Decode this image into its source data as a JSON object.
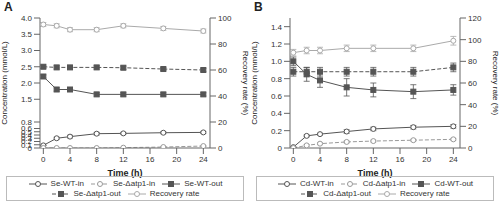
{
  "chart_data": [
    {
      "type": "line",
      "title": "A",
      "xlabel": "Time (h)",
      "ylabel": "Concentration (mmol/L)",
      "y2label": "Recovery rate (%)",
      "x": [
        0,
        2,
        4,
        8,
        12,
        18,
        24
      ],
      "xlim": [
        -0.5,
        25
      ],
      "xticks": [
        0,
        4,
        8,
        12,
        16,
        20,
        24
      ],
      "ylim": [
        0,
        4
      ],
      "yticks": [
        0,
        0.1,
        0.2,
        0.3,
        0.4,
        0.5,
        0.6,
        0.8,
        1.5,
        {
          "value": 2,
          "label": "2.0"
        },
        2.5,
        {
          "value": 3,
          "label": "3.0"
        },
        3.5,
        {
          "value": 4,
          "label": "4.0"
        }
      ],
      "y2lim": [
        0,
        100
      ],
      "y2ticks": [
        0,
        20,
        40,
        60,
        80,
        100
      ],
      "series": [
        {
          "name": "Se-WT-in",
          "color": "#555555",
          "marker": "circle",
          "line_style": "solid",
          "values": [
            0.08,
            0.3,
            0.35,
            0.44,
            0.45,
            0.47,
            0.48
          ],
          "errors": [
            0.01,
            0.03,
            0.04,
            0.04,
            0.03,
            0.03,
            0.03
          ]
        },
        {
          "name": "Se-Δatp1-in",
          "color": "#999999",
          "marker": "circle",
          "line_style": "dashed",
          "values": [
            0.0,
            0.0,
            0.0,
            0.0,
            0.01,
            0.03,
            0.06
          ],
          "errors": [
            0.0,
            0.0,
            0.0,
            0.0,
            0.005,
            0.01,
            0.01
          ]
        },
        {
          "name": "Se-WT-out",
          "color": "#555555",
          "marker": "square",
          "line_style": "solid",
          "values": [
            2.2,
            1.8,
            1.8,
            1.65,
            1.65,
            1.65,
            1.65
          ],
          "errors": [
            0.05,
            0.05,
            0.05,
            0.05,
            0.05,
            0.05,
            0.05
          ]
        },
        {
          "name": "Se-Δatp1-out",
          "color": "#555555",
          "marker": "square",
          "line_style": "dashed",
          "values": [
            2.5,
            2.48,
            2.48,
            2.48,
            2.47,
            2.43,
            2.4
          ],
          "errors": [
            0.05,
            0.05,
            0.05,
            0.05,
            0.05,
            0.05,
            0.05
          ]
        },
        {
          "name": "Recovery rate",
          "color": "#aaaaaa",
          "marker": "circle",
          "line_style": "solid",
          "axis": "y2",
          "values": [
            95,
            94,
            91,
            91,
            94,
            92,
            90
          ],
          "errors": [
            1.5,
            1.5,
            1.5,
            1.5,
            1.5,
            1.5,
            1.5
          ]
        }
      ]
    },
    {
      "type": "line",
      "title": "B",
      "xlabel": "Time (h)",
      "ylabel": "Concentration (mmol/L)",
      "y2label": "Recovery rate (%)",
      "x": [
        0,
        2,
        4,
        8,
        12,
        18,
        24
      ],
      "xlim": [
        -0.5,
        25
      ],
      "xticks": [
        0,
        4,
        8,
        12,
        16,
        20,
        24
      ],
      "ylim": [
        0,
        1.5
      ],
      "yticks": [
        0,
        0.2,
        0.4,
        0.6,
        0.8,
        {
          "value": 1,
          "label": "1.0"
        },
        1.2,
        1.4
      ],
      "y2lim": [
        0,
        120
      ],
      "y2ticks": [
        0,
        20,
        40,
        60,
        80,
        100,
        120
      ],
      "series": [
        {
          "name": "Cd-WT-in",
          "color": "#555555",
          "marker": "circle",
          "line_style": "solid",
          "values": [
            0.01,
            0.14,
            0.16,
            0.19,
            0.22,
            0.24,
            0.25
          ],
          "errors": [
            0.005,
            0.01,
            0.01,
            0.02,
            0.02,
            0.02,
            0.02
          ]
        },
        {
          "name": "Cd-Δatp1-in",
          "color": "#999999",
          "marker": "circle",
          "line_style": "dashed",
          "values": [
            0.0,
            0.03,
            0.05,
            0.07,
            0.08,
            0.09,
            0.1
          ],
          "errors": [
            0.0,
            0.01,
            0.01,
            0.01,
            0.01,
            0.01,
            0.01
          ]
        },
        {
          "name": "Cd-WT-out",
          "color": "#555555",
          "marker": "square",
          "line_style": "solid",
          "values": [
            1.0,
            0.85,
            0.78,
            0.7,
            0.67,
            0.65,
            0.67
          ],
          "errors": [
            0.05,
            0.08,
            0.08,
            0.1,
            0.08,
            0.08,
            0.06
          ]
        },
        {
          "name": "Cd-Δatp1-out",
          "color": "#555555",
          "marker": "square",
          "line_style": "dashed",
          "values": [
            0.88,
            0.88,
            0.88,
            0.88,
            0.88,
            0.88,
            0.93
          ],
          "errors": [
            0.05,
            0.05,
            0.05,
            0.05,
            0.05,
            0.05,
            0.05
          ]
        },
        {
          "name": "Recovery rate",
          "color": "#aaaaaa",
          "marker": "circle",
          "line_style": "solid",
          "axis": "y2",
          "values": [
            88,
            90,
            90,
            92,
            92,
            92,
            99
          ],
          "errors": [
            3,
            3,
            3,
            3,
            3,
            3,
            4
          ]
        }
      ]
    }
  ]
}
